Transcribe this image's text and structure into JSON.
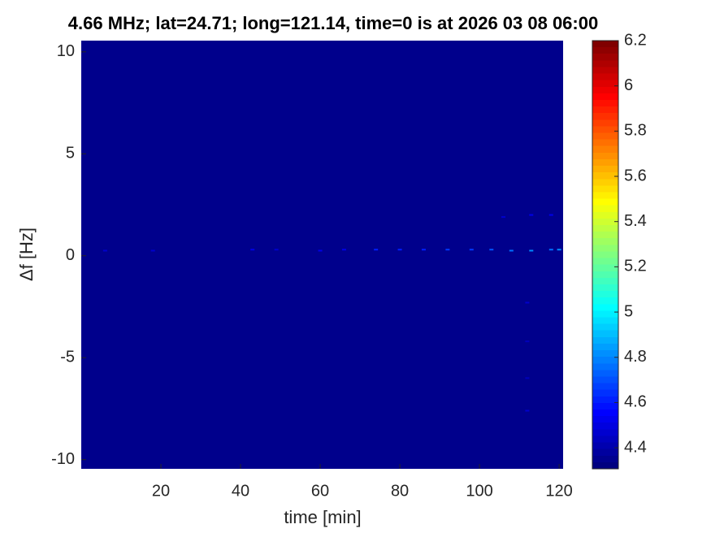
{
  "chart_data": {
    "type": "heatmap",
    "title": "4.66 MHz;  lat=24.71; long=121.14, time=0 is at 2026 03 08 06:00",
    "x_label": "time [min]",
    "y_label": "Δf [Hz]",
    "xlim": [
      0,
      121
    ],
    "ylim": [
      -10.45,
      10.55
    ],
    "xticks": [
      20,
      40,
      60,
      80,
      100,
      120
    ],
    "yticks": [
      -10,
      -5,
      0,
      5,
      10
    ],
    "clim": [
      4.307,
      6.2
    ],
    "cticks": [
      4.4,
      4.6,
      4.8,
      5,
      5.2,
      5.4,
      5.6,
      5.8,
      6,
      6.2
    ],
    "colormap": "jet",
    "background_value": 4.33,
    "x": [
      6,
      18,
      43,
      49,
      60,
      66,
      74,
      80,
      86,
      92,
      98,
      103,
      108,
      113,
      118,
      120,
      106,
      113,
      118,
      112,
      112,
      112,
      112
    ],
    "y": [
      0.25,
      0.25,
      0.3,
      0.3,
      0.25,
      0.3,
      0.3,
      0.3,
      0.3,
      0.3,
      0.3,
      0.3,
      0.25,
      0.25,
      0.3,
      0.3,
      1.9,
      2.0,
      2.0,
      -2.3,
      -4.2,
      -6.0,
      -7.6
    ],
    "values": [
      4.45,
      4.45,
      4.5,
      4.45,
      4.5,
      4.5,
      4.6,
      4.6,
      4.6,
      4.65,
      4.65,
      4.7,
      4.75,
      4.8,
      4.75,
      4.8,
      4.45,
      4.5,
      4.5,
      4.45,
      4.42,
      4.42,
      4.45
    ]
  }
}
